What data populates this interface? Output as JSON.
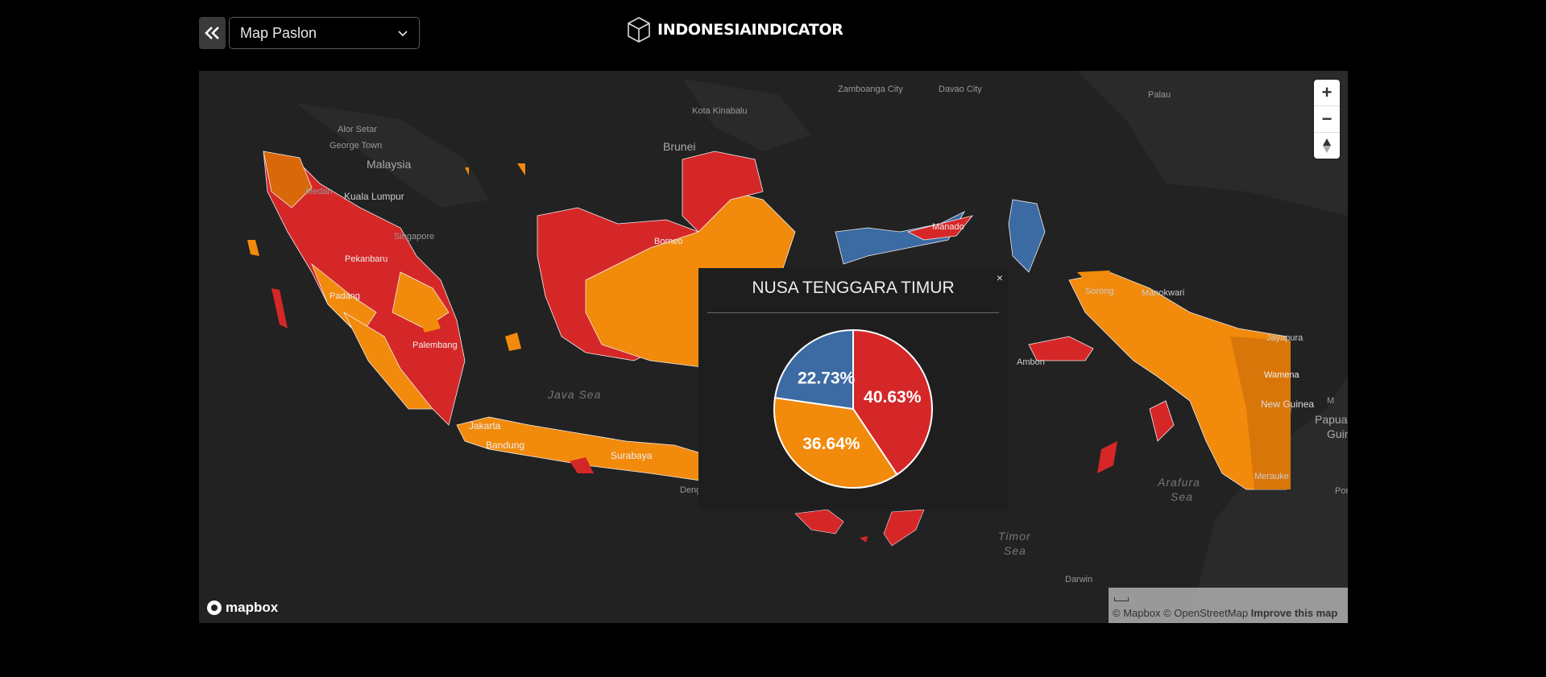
{
  "header": {
    "back_icon": "double-chevron-left-icon",
    "select_value": "Map Paslon",
    "select_icon": "chevron-down-icon",
    "logo_text": "INDONESIAINDICATOR",
    "logo_icon": "cube-icon"
  },
  "map": {
    "zoom_in": "+",
    "zoom_out": "−",
    "compass_icon": "compass-icon",
    "labels": {
      "zamboanga": "Zamboanga City",
      "davao": "Davao City",
      "palau": "Palau",
      "kota_kinabalu": "Kota Kinabalu",
      "alor_setar": "Alor Setar",
      "george_town": "George Town",
      "malaysia": "Malaysia",
      "brunei": "Brunei",
      "medan": "Medan",
      "kuala_lumpur": "Kuala Lumpur",
      "singapore": "Singapore",
      "pekanbaru": "Pekanbaru",
      "padang": "Padang",
      "palembang": "Palembang",
      "borneo": "Borneo",
      "manado": "Manado",
      "sorong": "Sorong",
      "manokwari": "Manokwari",
      "jayapura": "Jayapura",
      "wamena": "Wamena",
      "new_guinea": "New Guinea",
      "papua": "Papua",
      "guin": "Guin",
      "ambon": "Ambon",
      "merauke": "Merauke",
      "java_sea": "Java Sea",
      "jakarta": "Jakarta",
      "bandung": "Bandung",
      "surabaya": "Surabaya",
      "deng": "Deng",
      "arafura_sea_1": "Arafura",
      "arafura_sea_2": "Sea",
      "timor_sea_1": "Timor",
      "timor_sea_2": "Sea",
      "darwin": "Darwin",
      "por": "Por",
      "m": "M"
    },
    "attribution": {
      "mapbox": "© Mapbox",
      "osm": "© OpenStreetMap",
      "improve": "Improve this map"
    },
    "mapbox_logo_text": "mapbox"
  },
  "popup": {
    "title": "NUSA TENGGARA TIMUR",
    "close": "×"
  },
  "colors": {
    "red": "#d62728",
    "orange": "#f28a0c",
    "blue": "#3c6aa3",
    "map_bg": "#222222"
  },
  "chart_data": {
    "type": "pie",
    "values": [
      40.63,
      36.64,
      22.73
    ],
    "labels": [
      "40.63%",
      "36.64%",
      "22.73%"
    ],
    "colors": [
      "#d62728",
      "#f28a0c",
      "#3c6aa3"
    ]
  }
}
